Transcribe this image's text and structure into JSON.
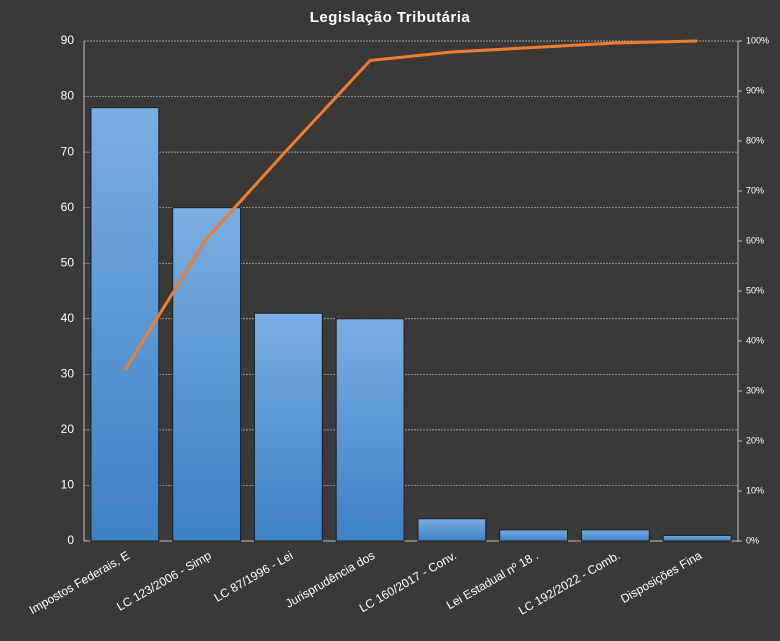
{
  "chart_data": {
    "type": "bar",
    "title": "Legislação Tributária",
    "categories": [
      "Impostos Federais, E",
      "LC 123/2006 - Simp",
      "LC 87/1996 - Lei",
      "Jurisprudência dos",
      "LC 160/2017 - Conv.",
      "Lei Estadual nº 18 .",
      "LC 192/2022 - Comb.",
      "Disposições Fina"
    ],
    "series": [
      {
        "type": "bar",
        "color": "#5b9bd5",
        "values": [
          78,
          60,
          41,
          40,
          4,
          2,
          2,
          1
        ]
      },
      {
        "type": "line",
        "color": "#ed7d31",
        "axis": "y2",
        "values": [
          34.2,
          60.5,
          78.5,
          96.1,
          97.8,
          98.7,
          99.6,
          100
        ]
      }
    ],
    "ylim": [
      0,
      90
    ],
    "yticks": [
      0,
      10,
      20,
      30,
      40,
      50,
      60,
      70,
      80,
      90
    ],
    "y2lim": [
      0,
      100
    ],
    "y2ticks": [
      {
        "value": 0,
        "label": "0%"
      },
      {
        "value": 10,
        "label": "10%"
      },
      {
        "value": 20,
        "label": "20%"
      },
      {
        "value": 30,
        "label": "30%"
      },
      {
        "value": 40,
        "label": "40%"
      },
      {
        "value": 50,
        "label": "50%"
      },
      {
        "value": 60,
        "label": "60%"
      },
      {
        "value": 70,
        "label": "70%"
      },
      {
        "value": 80,
        "label": "80%"
      },
      {
        "value": 90,
        "label": "90%"
      },
      {
        "value": 100,
        "label": "100%"
      }
    ],
    "grid": true
  }
}
